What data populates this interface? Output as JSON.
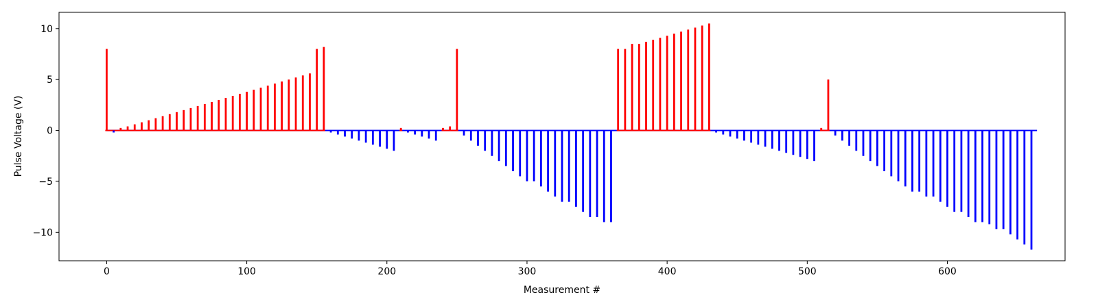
{
  "chart_data": {
    "type": "bar",
    "title": "",
    "xlabel": "Measurement #",
    "ylabel": "Pulse Voltage (V)",
    "xlim": [
      -34,
      684
    ],
    "ylim": [
      -12.8,
      11.6
    ],
    "x_ticks": [
      0,
      100,
      200,
      300,
      400,
      500,
      600
    ],
    "y_ticks": [
      -10,
      -5,
      0,
      5,
      10
    ],
    "grid": false,
    "colors": {
      "positive": "#ff0000",
      "negative": "#0000ff"
    },
    "baseline": {
      "x_start": 0,
      "x_end": 664,
      "y": 0
    },
    "series": [
      {
        "color": "#ff0000",
        "x": [
          0,
          10,
          15,
          20,
          25,
          30,
          35,
          40,
          45,
          50,
          55,
          60,
          65,
          70,
          75,
          80,
          85,
          90,
          95,
          100,
          105,
          110,
          115,
          120,
          125,
          130,
          135,
          140,
          145,
          150,
          155,
          210,
          240,
          245,
          250,
          365,
          370,
          375,
          380,
          385,
          390,
          395,
          400,
          405,
          410,
          415,
          420,
          425,
          430,
          510,
          515
        ],
        "values": [
          8.0,
          0.25,
          0.4,
          0.6,
          0.8,
          1.0,
          1.2,
          1.4,
          1.6,
          1.8,
          2.0,
          2.2,
          2.4,
          2.6,
          2.8,
          3.0,
          3.2,
          3.4,
          3.6,
          3.8,
          4.0,
          4.2,
          4.4,
          4.6,
          4.8,
          5.0,
          5.2,
          5.4,
          5.6,
          8.0,
          8.2,
          0.25,
          0.25,
          0.4,
          8.0,
          8.0,
          8.0,
          8.5,
          8.5,
          8.7,
          8.9,
          9.1,
          9.3,
          9.5,
          9.7,
          9.9,
          10.1,
          10.3,
          10.5,
          0.25,
          5.0
        ]
      },
      {
        "color": "#0000ff",
        "x": [
          5,
          160,
          165,
          170,
          175,
          180,
          185,
          190,
          195,
          200,
          205,
          215,
          220,
          225,
          230,
          235,
          255,
          260,
          265,
          270,
          275,
          280,
          285,
          290,
          295,
          300,
          305,
          310,
          315,
          320,
          325,
          330,
          335,
          340,
          345,
          350,
          355,
          360,
          435,
          440,
          445,
          450,
          455,
          460,
          465,
          470,
          475,
          480,
          485,
          490,
          495,
          500,
          505,
          520,
          525,
          530,
          535,
          540,
          545,
          550,
          555,
          560,
          565,
          570,
          575,
          580,
          585,
          590,
          595,
          600,
          605,
          610,
          615,
          620,
          625,
          630,
          635,
          640,
          645,
          650,
          655,
          660
        ],
        "values": [
          -0.2,
          -0.2,
          -0.4,
          -0.6,
          -0.8,
          -1.0,
          -1.2,
          -1.4,
          -1.6,
          -1.8,
          -2.0,
          -0.2,
          -0.4,
          -0.6,
          -0.8,
          -1.0,
          -0.5,
          -1.0,
          -1.5,
          -2.0,
          -2.5,
          -3.0,
          -3.5,
          -4.0,
          -4.5,
          -5.0,
          -5.0,
          -5.5,
          -6.0,
          -6.5,
          -7.0,
          -7.0,
          -7.5,
          -8.0,
          -8.5,
          -8.5,
          -9.0,
          -9.0,
          -0.2,
          -0.4,
          -0.6,
          -0.8,
          -1.0,
          -1.2,
          -1.4,
          -1.6,
          -1.8,
          -2.0,
          -2.2,
          -2.4,
          -2.6,
          -2.8,
          -3.0,
          -0.5,
          -1.0,
          -1.5,
          -2.0,
          -2.5,
          -3.0,
          -3.5,
          -4.0,
          -4.5,
          -5.0,
          -5.5,
          -6.0,
          -6.0,
          -6.5,
          -6.5,
          -7.0,
          -7.5,
          -8.0,
          -8.0,
          -8.5,
          -9.0,
          -9.0,
          -9.2,
          -9.7,
          -9.7,
          -10.2,
          -10.7,
          -11.2,
          -11.7
        ]
      }
    ]
  }
}
